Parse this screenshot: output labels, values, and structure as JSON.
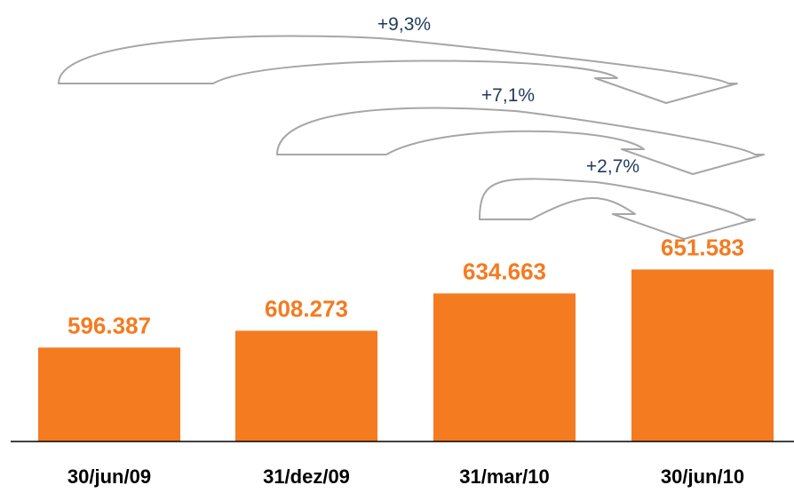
{
  "chart_data": {
    "type": "bar",
    "categories": [
      "30/jun/09",
      "31/dez/09",
      "31/mar/10",
      "30/jun/10"
    ],
    "values": [
      596387,
      608273,
      634663,
      651583
    ],
    "value_labels": [
      "596.387",
      "608.273",
      "634.663",
      "651.583"
    ],
    "title": "",
    "xlabel": "",
    "ylabel": "",
    "ylim": [
      530000,
      660000
    ],
    "grid": false,
    "legend": "none",
    "annotations": [
      {
        "text": "+9,3%",
        "from": "30/jun/09",
        "to": "30/jun/10"
      },
      {
        "text": "+7,1%",
        "from": "31/dez/09",
        "to": "30/jun/10"
      },
      {
        "text": "+2,7%",
        "from": "31/mar/10",
        "to": "30/jun/10"
      }
    ]
  },
  "colors": {
    "bar": "#f47b20",
    "data_label": "#f47b20",
    "growth_label": "#1f3a5c",
    "arrow_stroke": "#a6a6a6",
    "axis": "#000000"
  }
}
